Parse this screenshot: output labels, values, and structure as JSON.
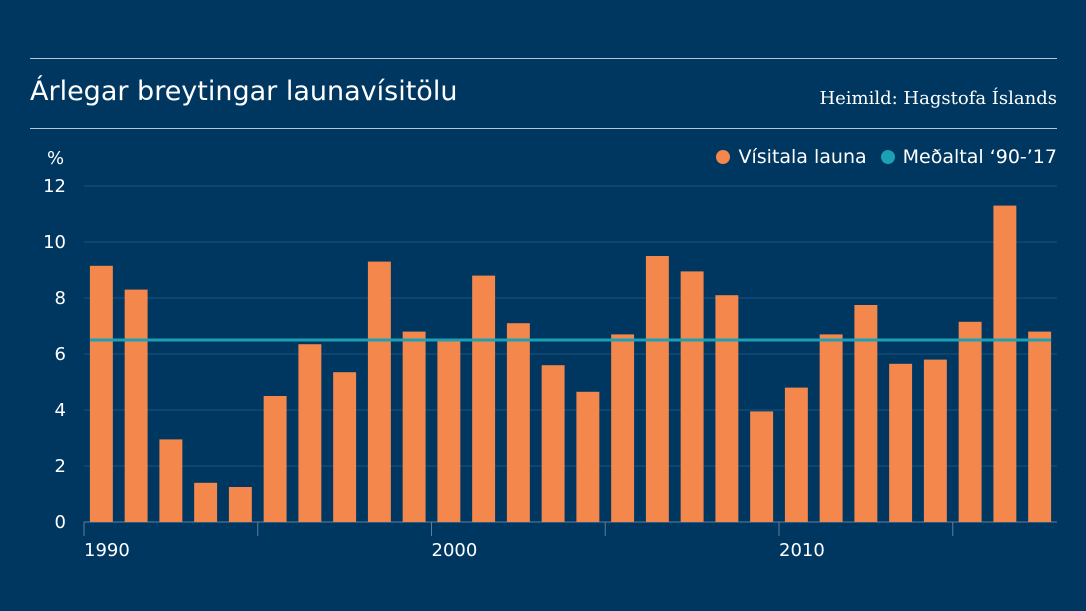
{
  "header": {
    "title": "Árlegar breytingar launavísitölu",
    "source": "Heimild: Hagstofa Íslands"
  },
  "legend": {
    "items": [
      {
        "label": "Vísitala launa",
        "color": "#f4874b"
      },
      {
        "label": "Meðaltal ‘90-’17",
        "color": "#1ba0b5"
      }
    ]
  },
  "chart_data": {
    "type": "bar",
    "unit_label": "%",
    "x": [
      1990,
      1991,
      1992,
      1993,
      1994,
      1995,
      1996,
      1997,
      1998,
      1999,
      2000,
      2001,
      2002,
      2003,
      2004,
      2005,
      2006,
      2007,
      2008,
      2009,
      2010,
      2011,
      2012,
      2013,
      2014,
      2015,
      2016,
      2017
    ],
    "series": [
      {
        "name": "Vísitala launa",
        "color": "#f4874b",
        "values": [
          9.15,
          8.3,
          2.95,
          1.4,
          1.25,
          4.5,
          6.35,
          5.35,
          9.3,
          6.8,
          6.55,
          8.8,
          7.1,
          5.6,
          4.65,
          6.7,
          9.5,
          8.95,
          8.1,
          3.95,
          4.8,
          6.7,
          7.75,
          5.65,
          5.8,
          7.15,
          11.3,
          6.8
        ]
      },
      {
        "name": "Meðaltal ‘90-’17",
        "type": "line",
        "color": "#1ba0b5",
        "value": 6.5
      }
    ],
    "ylim": [
      0,
      12
    ],
    "yticks": [
      0,
      2,
      4,
      6,
      8,
      10,
      12
    ],
    "xticks": [
      1990,
      2000,
      2010
    ],
    "grid": true,
    "legend_position": "top-right"
  }
}
